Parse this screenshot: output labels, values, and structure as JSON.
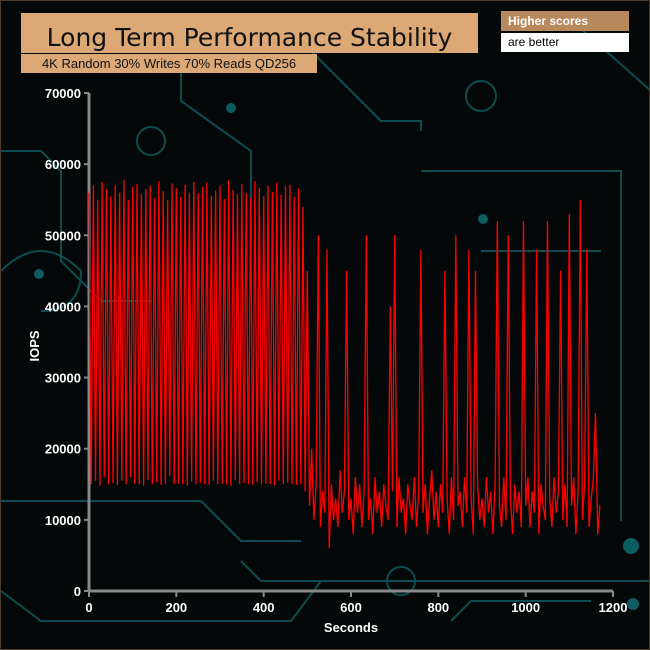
{
  "header": {
    "title": "Long Term Performance Stability",
    "subtitle": "4K Random 30% Writes 70% Reads QD256",
    "badge_top": "Higher scores",
    "badge_bottom": "are better"
  },
  "chart_data": {
    "type": "line",
    "title": "Long Term Performance Stability",
    "subtitle": "4K Random 30% Writes 70% Reads QD256",
    "xlabel": "Seconds",
    "ylabel": "IOPS",
    "xlim": [
      0,
      1200
    ],
    "ylim": [
      0,
      70000
    ],
    "xticks": [
      0,
      200,
      400,
      600,
      800,
      1000,
      1200
    ],
    "yticks": [
      0,
      10000,
      20000,
      30000,
      40000,
      50000,
      60000,
      70000
    ],
    "series_color": "#ff0000",
    "x_step": 5,
    "values": [
      56000,
      15000,
      57000,
      15500,
      55000,
      14800,
      57500,
      16000,
      56500,
      15000,
      55500,
      15200,
      57000,
      14900,
      56000,
      15500,
      57800,
      15000,
      55000,
      16000,
      56800,
      15100,
      57200,
      15000,
      55800,
      14800,
      56500,
      15600,
      57000,
      15000,
      55200,
      15300,
      57600,
      14900,
      56200,
      15000,
      55000,
      16200,
      57300,
      15000,
      56600,
      15100,
      55400,
      15000,
      57100,
      14800,
      56000,
      15400,
      57500,
      15000,
      55900,
      15200,
      56800,
      15000,
      57400,
      14900,
      55600,
      15500,
      56300,
      15000,
      57000,
      15100,
      55100,
      15000,
      57700,
      14800,
      56400,
      15600,
      55800,
      15000,
      57200,
      15200,
      56000,
      15000,
      55300,
      14900,
      57600,
      15300,
      56700,
      15000,
      55500,
      15100,
      57000,
      15000,
      56100,
      14800,
      57400,
      15500,
      55700,
      15000,
      56900,
      15200,
      57100,
      15000,
      55400,
      14900,
      56600,
      15000,
      54000,
      14000,
      45000,
      12000,
      20000,
      10000,
      15000,
      50000,
      9000,
      14000,
      11000,
      48000,
      6000,
      15000,
      10000,
      13000,
      9000,
      17000,
      11000,
      14000,
      45000,
      10000,
      13000,
      8000,
      16000,
      11000,
      15000,
      9000,
      14000,
      50000,
      10000,
      13000,
      8000,
      16000,
      11000,
      14000,
      9000,
      15000,
      12000,
      10000,
      40000,
      14000,
      50000,
      9000,
      16000,
      11000,
      13000,
      8000,
      15000,
      12000,
      10000,
      16000,
      9000,
      14000,
      48000,
      11000,
      15000,
      8000,
      13000,
      17000,
      10000,
      14000,
      9000,
      15000,
      11000,
      45000,
      13000,
      8000,
      16000,
      10000,
      50000,
      12000,
      14000,
      9000,
      16000,
      11000,
      48000,
      13000,
      8000,
      45000,
      15000,
      10000,
      13000,
      9000,
      16000,
      11000,
      14000,
      8000,
      15000,
      52000,
      12000,
      9000,
      16000,
      10000,
      50000,
      13000,
      8000,
      15000,
      11000,
      14000,
      9000,
      52000,
      12000,
      16000,
      9000,
      14000,
      11000,
      48000,
      8000,
      15000,
      12000,
      10000,
      52000,
      13000,
      9000,
      16000,
      11000,
      14000,
      45000,
      10000,
      15000,
      9000,
      53000,
      12000,
      16000,
      8000,
      14000,
      55000,
      10000,
      15000,
      48000,
      9000,
      13000,
      16000,
      25000,
      8000,
      12000
    ]
  }
}
